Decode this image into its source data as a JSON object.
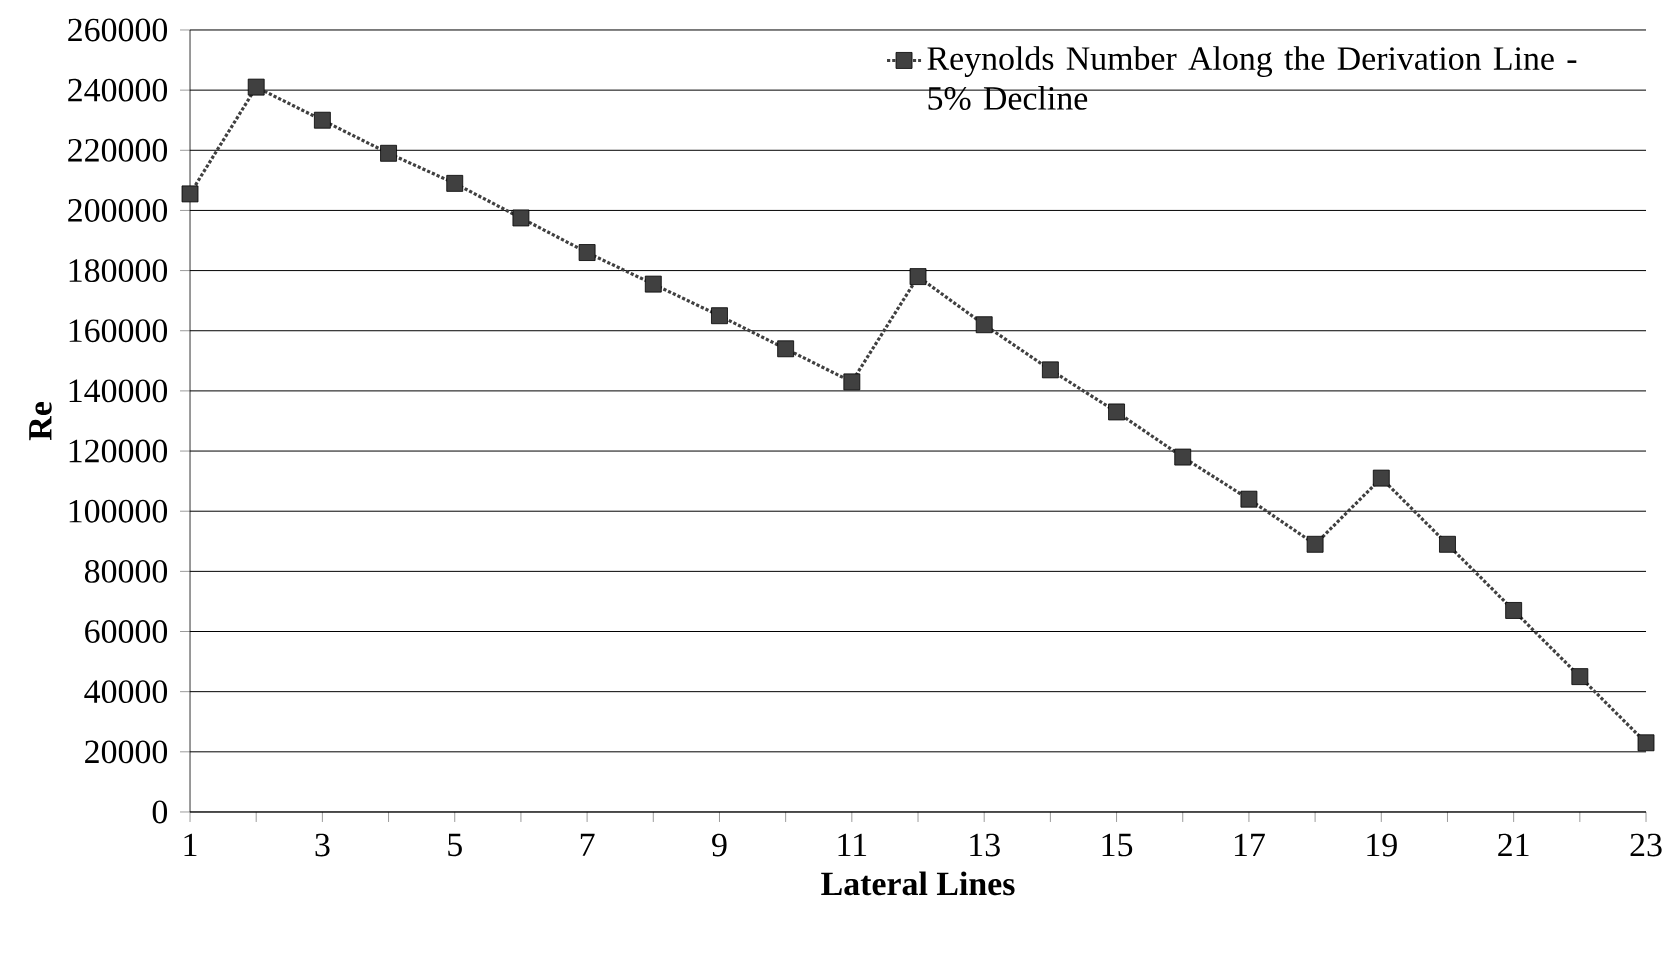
{
  "chart_data": {
    "type": "line",
    "xlabel": "Lateral Lines",
    "ylabel": "Re",
    "x": [
      1,
      2,
      3,
      4,
      5,
      6,
      7,
      8,
      9,
      10,
      11,
      12,
      13,
      14,
      15,
      16,
      17,
      18,
      19,
      20,
      21,
      22,
      23
    ],
    "series": [
      {
        "name": "Reynolds Number Along the Derivation Line - 5% Decline",
        "color": "#404040",
        "values": [
          205500,
          241000,
          230000,
          219000,
          209000,
          197500,
          186000,
          175500,
          165000,
          154000,
          143000,
          178000,
          162000,
          147000,
          133000,
          118000,
          104000,
          89000,
          111000,
          89000,
          67000,
          45000,
          23000
        ]
      }
    ],
    "xlim": [
      1,
      23
    ],
    "xticks": [
      1,
      {
        "value": 2,
        "label": null
      },
      3,
      {
        "value": 4,
        "label": null
      },
      5,
      {
        "value": 6,
        "label": null
      },
      7,
      {
        "value": 8,
        "label": null
      },
      9,
      {
        "value": 10,
        "label": null
      },
      11,
      {
        "value": 12,
        "label": null
      },
      13,
      {
        "value": 14,
        "label": null
      },
      15,
      {
        "value": 16,
        "label": null
      },
      17,
      {
        "value": 18,
        "label": null
      },
      19,
      {
        "value": 20,
        "label": null
      },
      21,
      {
        "value": 22,
        "label": null
      },
      23
    ],
    "ylim": [
      0,
      260000
    ],
    "yticks": [
      0,
      20000,
      40000,
      60000,
      80000,
      100000,
      120000,
      140000,
      160000,
      180000,
      200000,
      220000,
      240000,
      260000
    ],
    "grid": "y",
    "legend": "top right",
    "marker": "square",
    "line_style": "dotted"
  }
}
